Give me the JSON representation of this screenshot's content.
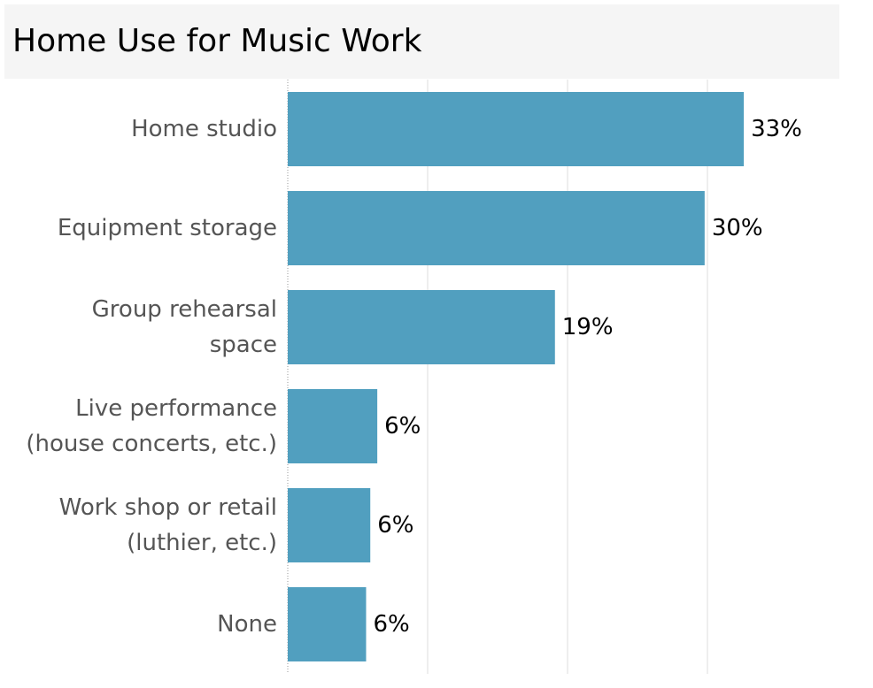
{
  "chart_data": {
    "type": "bar",
    "orientation": "horizontal",
    "title": "Home Use for Music Work",
    "categories": [
      "Home studio",
      "Equipment storage",
      "Group rehearsal space",
      "Live performance (house concerts, etc.)",
      "Work shop or retail (luthier, etc.)",
      "None"
    ],
    "category_lines": [
      [
        "Home studio"
      ],
      [
        "Equipment storage"
      ],
      [
        "Group rehearsal",
        "space"
      ],
      [
        "Live performance",
        "(house concerts, etc.)"
      ],
      [
        "Work shop or retail",
        "(luthier, etc.)"
      ],
      [
        "None"
      ]
    ],
    "values": [
      33,
      30,
      19,
      6,
      6,
      6
    ],
    "display_values": [
      32.6,
      29.8,
      19.1,
      6.4,
      5.9,
      5.6
    ],
    "data_labels": [
      "33%",
      "30%",
      "19%",
      "6%",
      "6%",
      "6%"
    ],
    "xlim": [
      0,
      40
    ],
    "grid_ticks": [
      10,
      20,
      30
    ],
    "grid": true,
    "xlabel": "",
    "ylabel": "",
    "legend": "none",
    "colors": {
      "bar": "#519fbf",
      "label_text": "#555555",
      "value_text": "#000000",
      "grid": "#e9e9e9",
      "axis": "#999999",
      "title_bg": "#f5f5f5"
    }
  }
}
